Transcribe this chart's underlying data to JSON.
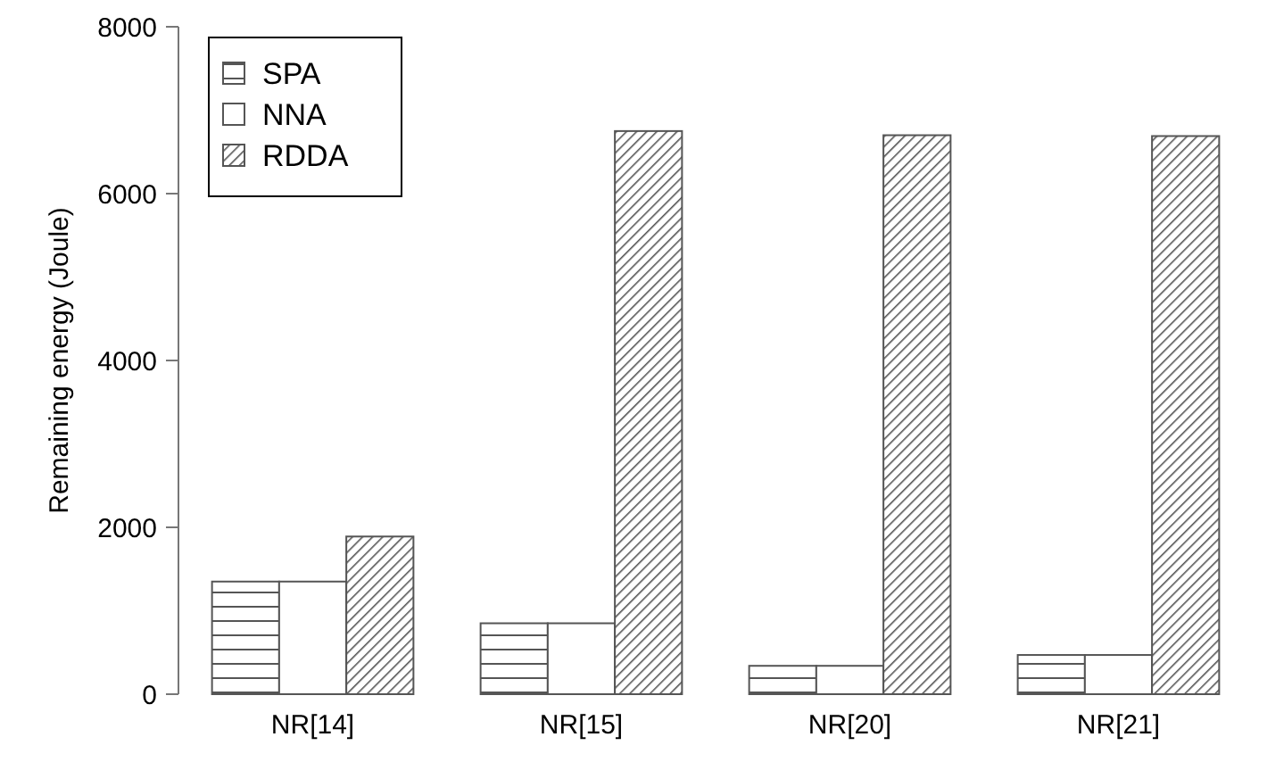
{
  "chart_data": {
    "type": "bar",
    "ylabel": "Remaining energy (Joule)",
    "categories": [
      "NR[14]",
      "NR[15]",
      "NR[20]",
      "NR[21]"
    ],
    "series": [
      {
        "name": "SPA",
        "color": "#555555",
        "values": [
          1350,
          850,
          340,
          470
        ]
      },
      {
        "name": "NNA",
        "color": "#ffffff",
        "values": [
          1350,
          850,
          340,
          470
        ]
      },
      {
        "name": "RDDA",
        "color": "#555555",
        "values": [
          1890,
          6750,
          6700,
          6690
        ]
      }
    ],
    "ylim": [
      0,
      8000
    ],
    "yticks": [
      0,
      2000,
      4000,
      6000,
      8000
    ],
    "grid": false,
    "legend": "top left"
  }
}
